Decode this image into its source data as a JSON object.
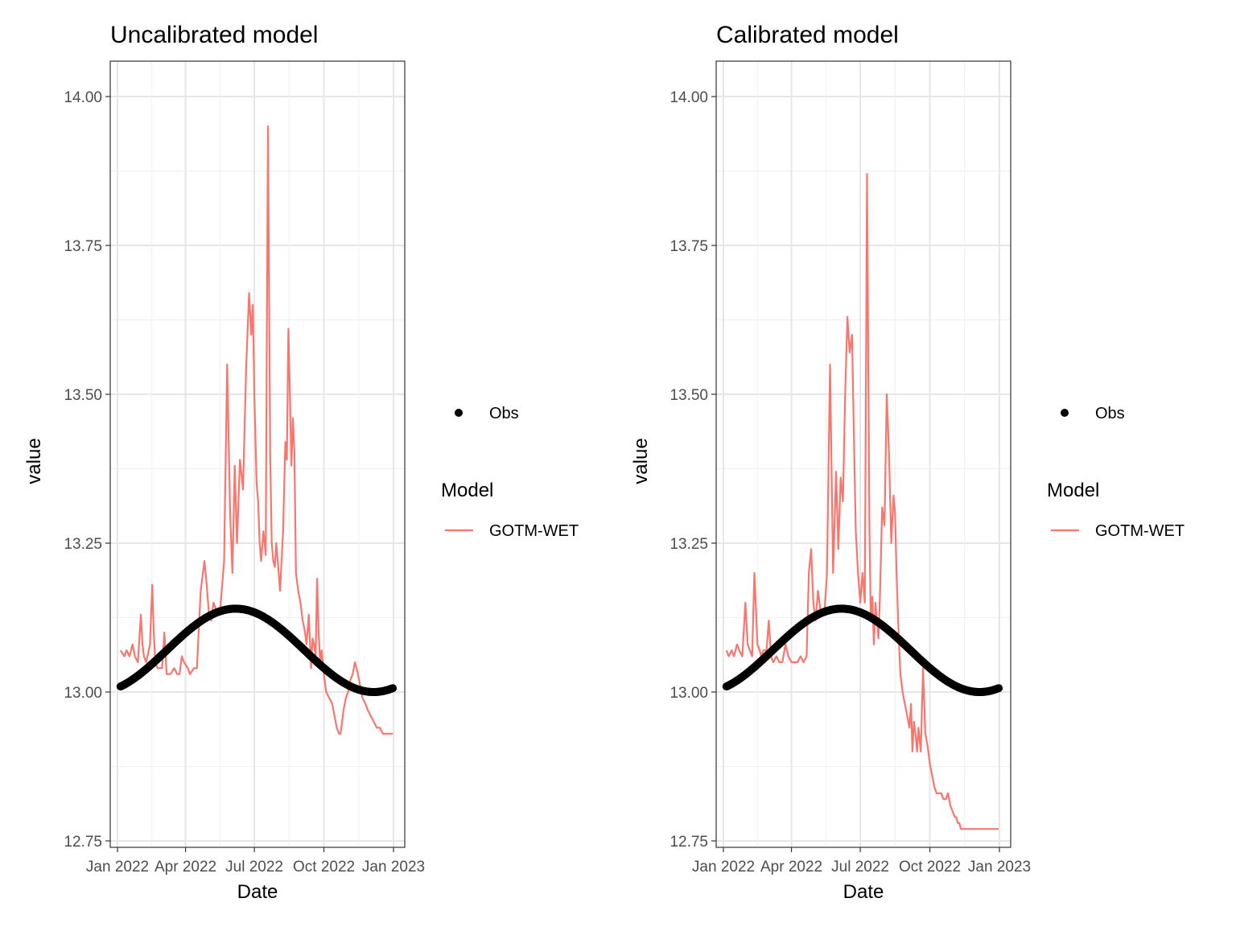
{
  "chart_data": [
    {
      "type": "line",
      "title": "Uncalibrated model",
      "xlabel": "Date",
      "ylabel": "value",
      "xlim": [
        "2022-01-01",
        "2023-01-01"
      ],
      "ylim": [
        12.75,
        14.0
      ],
      "yticks": [
        "12.75",
        "13.00",
        "13.25",
        "13.50",
        "13.75",
        "14.00"
      ],
      "xticks": [
        "Jan 2022",
        "Apr 2022",
        "Jul 2022",
        "Oct 2022",
        "Jan 2023"
      ],
      "grid": true,
      "legend_position": "right",
      "legend": {
        "obs_label": "Obs",
        "model_title": "Model",
        "model_label": "GOTM-WET"
      },
      "colors": {
        "model": "#F8766D",
        "obs": "#000000"
      },
      "series": [
        {
          "name": "Obs",
          "style": "points",
          "formula": "13.07 + 0.07*sin(2*pi*(t - 65)/365)",
          "x": [
            "2022-01-05",
            "2022-02-01",
            "2022-03-01",
            "2022-04-01",
            "2022-05-01",
            "2022-05-25",
            "2022-06-15",
            "2022-07-15",
            "2022-08-15",
            "2022-09-15",
            "2022-10-15",
            "2022-11-15",
            "2022-12-05",
            "2022-12-31"
          ],
          "values": [
            13.02,
            13.04,
            13.08,
            13.11,
            13.13,
            13.14,
            13.14,
            13.13,
            13.1,
            13.07,
            13.03,
            13.01,
            13.0,
            13.01
          ]
        },
        {
          "name": "GOTM-WET",
          "style": "line",
          "x": [
            "2022-01-05",
            "2022-01-10",
            "2022-01-13",
            "2022-01-17",
            "2022-01-21",
            "2022-01-24",
            "2022-01-28",
            "2022-02-01",
            "2022-02-03",
            "2022-02-05",
            "2022-02-08",
            "2022-02-13",
            "2022-02-16",
            "2022-02-18",
            "2022-02-20",
            "2022-02-23",
            "2022-02-26",
            "2022-03-01",
            "2022-03-04",
            "2022-03-07",
            "2022-03-12",
            "2022-03-17",
            "2022-03-21",
            "2022-03-24",
            "2022-03-27",
            "2022-03-30",
            "2022-04-04",
            "2022-04-07",
            "2022-04-12",
            "2022-04-16",
            "2022-04-21",
            "2022-04-26",
            "2022-04-29",
            "2022-05-02",
            "2022-05-05",
            "2022-05-08",
            "2022-05-11",
            "2022-05-14",
            "2022-05-17",
            "2022-05-22",
            "2022-05-26",
            "2022-05-30",
            "2022-06-02",
            "2022-06-05",
            "2022-06-08",
            "2022-06-12",
            "2022-06-16",
            "2022-06-20",
            "2022-06-24",
            "2022-06-27",
            "2022-06-29",
            "2022-07-01",
            "2022-07-04",
            "2022-07-06",
            "2022-07-08",
            "2022-07-10",
            "2022-07-13",
            "2022-07-16",
            "2022-07-19",
            "2022-07-22",
            "2022-07-24",
            "2022-07-26",
            "2022-07-28",
            "2022-07-30",
            "2022-08-01",
            "2022-08-04",
            "2022-08-08",
            "2022-08-11",
            "2022-08-13",
            "2022-08-15",
            "2022-08-17",
            "2022-08-19",
            "2022-08-21",
            "2022-08-23",
            "2022-08-25",
            "2022-08-28",
            "2022-08-31",
            "2022-09-03",
            "2022-09-06",
            "2022-09-08",
            "2022-09-11",
            "2022-09-14",
            "2022-09-16",
            "2022-09-18",
            "2022-09-20",
            "2022-09-22",
            "2022-09-24",
            "2022-09-26",
            "2022-09-28",
            "2022-10-01",
            "2022-10-04",
            "2022-10-08",
            "2022-10-12",
            "2022-10-15",
            "2022-10-18",
            "2022-10-21",
            "2022-10-23",
            "2022-10-25",
            "2022-10-27",
            "2022-10-30",
            "2022-11-02",
            "2022-11-05",
            "2022-11-08",
            "2022-11-11",
            "2022-11-13",
            "2022-11-15",
            "2022-11-18",
            "2022-11-21",
            "2022-11-25",
            "2022-11-28",
            "2022-12-02",
            "2022-12-06",
            "2022-12-10",
            "2022-12-14",
            "2022-12-18",
            "2022-12-22",
            "2022-12-26",
            "2022-12-31"
          ],
          "values": [
            13.07,
            13.06,
            13.07,
            13.06,
            13.08,
            13.06,
            13.05,
            13.13,
            13.08,
            13.06,
            13.05,
            13.08,
            13.18,
            13.1,
            13.05,
            13.04,
            13.04,
            13.04,
            13.1,
            13.03,
            13.03,
            13.04,
            13.03,
            13.03,
            13.06,
            13.05,
            13.04,
            13.03,
            13.04,
            13.04,
            13.17,
            13.22,
            13.18,
            13.13,
            13.12,
            13.15,
            13.14,
            13.13,
            13.14,
            13.22,
            13.55,
            13.3,
            13.2,
            13.38,
            13.25,
            13.39,
            13.34,
            13.54,
            13.67,
            13.6,
            13.65,
            13.5,
            13.35,
            13.32,
            13.25,
            13.22,
            13.27,
            13.23,
            13.95,
            13.4,
            13.25,
            13.22,
            13.21,
            13.25,
            13.22,
            13.17,
            13.27,
            13.42,
            13.39,
            13.61,
            13.5,
            13.38,
            13.46,
            13.4,
            13.2,
            13.17,
            13.15,
            13.12,
            13.1,
            13.08,
            13.13,
            13.04,
            13.09,
            13.08,
            13.06,
            13.19,
            13.1,
            13.05,
            13.07,
            13.03,
            13.0,
            12.99,
            12.98,
            12.96,
            12.94,
            12.93,
            12.93,
            12.95,
            12.97,
            12.99,
            13.0,
            13.02,
            13.03,
            13.05,
            13.04,
            13.03,
            13.01,
            12.99,
            12.98,
            12.97,
            12.96,
            12.95,
            12.94,
            12.94,
            12.93,
            12.93,
            12.93,
            12.93
          ]
        }
      ]
    },
    {
      "type": "line",
      "title": "Calibrated model",
      "xlabel": "Date",
      "ylabel": "value",
      "xlim": [
        "2022-01-01",
        "2023-01-01"
      ],
      "ylim": [
        12.75,
        14.0
      ],
      "yticks": [
        "12.75",
        "13.00",
        "13.25",
        "13.50",
        "13.75",
        "14.00"
      ],
      "xticks": [
        "Jan 2022",
        "Apr 2022",
        "Jul 2022",
        "Oct 2022",
        "Jan 2023"
      ],
      "grid": true,
      "legend_position": "right",
      "legend": {
        "obs_label": "Obs",
        "model_title": "Model",
        "model_label": "GOTM-WET"
      },
      "colors": {
        "model": "#F8766D",
        "obs": "#000000"
      },
      "series": [
        {
          "name": "Obs",
          "style": "points",
          "formula": "13.07 + 0.07*sin(2*pi*(t - 65)/365)",
          "x": [
            "2022-01-05",
            "2022-02-01",
            "2022-03-01",
            "2022-04-01",
            "2022-05-01",
            "2022-05-25",
            "2022-06-15",
            "2022-07-15",
            "2022-08-15",
            "2022-09-15",
            "2022-10-15",
            "2022-11-15",
            "2022-12-05",
            "2022-12-31"
          ],
          "values": [
            13.02,
            13.04,
            13.08,
            13.11,
            13.13,
            13.14,
            13.14,
            13.13,
            13.1,
            13.07,
            13.03,
            13.01,
            13.0,
            13.01
          ]
        },
        {
          "name": "GOTM-WET",
          "style": "line",
          "x": [
            "2022-01-05",
            "2022-01-08",
            "2022-01-12",
            "2022-01-15",
            "2022-01-19",
            "2022-01-22",
            "2022-01-26",
            "2022-01-30",
            "2022-02-02",
            "2022-02-05",
            "2022-02-08",
            "2022-02-11",
            "2022-02-15",
            "2022-02-18",
            "2022-02-20",
            "2022-02-23",
            "2022-02-27",
            "2022-03-02",
            "2022-03-05",
            "2022-03-08",
            "2022-03-12",
            "2022-03-16",
            "2022-03-20",
            "2022-03-24",
            "2022-03-28",
            "2022-04-01",
            "2022-04-05",
            "2022-04-09",
            "2022-04-13",
            "2022-04-17",
            "2022-04-21",
            "2022-04-24",
            "2022-04-27",
            "2022-04-30",
            "2022-05-03",
            "2022-05-06",
            "2022-05-09",
            "2022-05-12",
            "2022-05-15",
            "2022-05-18",
            "2022-05-22",
            "2022-05-26",
            "2022-05-30",
            "2022-06-02",
            "2022-06-05",
            "2022-06-08",
            "2022-06-11",
            "2022-06-14",
            "2022-06-17",
            "2022-06-20",
            "2022-06-23",
            "2022-06-25",
            "2022-06-28",
            "2022-07-01",
            "2022-07-04",
            "2022-07-07",
            "2022-07-10",
            "2022-07-13",
            "2022-07-15",
            "2022-07-17",
            "2022-07-19",
            "2022-07-21",
            "2022-07-23",
            "2022-07-25",
            "2022-07-27",
            "2022-07-30",
            "2022-08-02",
            "2022-08-05",
            "2022-08-08",
            "2022-08-11",
            "2022-08-14",
            "2022-08-16",
            "2022-08-18",
            "2022-08-20",
            "2022-08-23",
            "2022-08-26",
            "2022-08-29",
            "2022-09-01",
            "2022-09-04",
            "2022-09-06",
            "2022-09-08",
            "2022-09-10",
            "2022-09-12",
            "2022-09-14",
            "2022-09-16",
            "2022-09-19",
            "2022-09-22",
            "2022-09-25",
            "2022-09-28",
            "2022-10-01",
            "2022-10-04",
            "2022-10-07",
            "2022-10-10",
            "2022-10-13",
            "2022-10-16",
            "2022-10-19",
            "2022-10-22",
            "2022-10-25",
            "2022-10-28",
            "2022-10-31",
            "2022-11-03",
            "2022-11-05",
            "2022-11-07",
            "2022-11-09",
            "2022-11-11",
            "2022-11-13",
            "2022-11-15",
            "2022-11-18",
            "2022-11-21",
            "2022-11-24",
            "2022-11-27",
            "2022-11-30",
            "2022-12-03",
            "2022-12-06",
            "2022-12-09",
            "2022-12-12",
            "2022-12-16",
            "2022-12-20",
            "2022-12-24",
            "2022-12-28",
            "2022-12-31"
          ],
          "values": [
            13.07,
            13.06,
            13.07,
            13.06,
            13.08,
            13.07,
            13.06,
            13.15,
            13.08,
            13.07,
            13.06,
            13.2,
            13.08,
            13.07,
            13.06,
            13.07,
            13.07,
            13.12,
            13.06,
            13.05,
            13.06,
            13.05,
            13.05,
            13.08,
            13.06,
            13.05,
            13.05,
            13.05,
            13.06,
            13.05,
            13.06,
            13.2,
            13.24,
            13.15,
            13.12,
            13.17,
            13.14,
            13.13,
            13.14,
            13.2,
            13.55,
            13.2,
            13.37,
            13.24,
            13.36,
            13.32,
            13.5,
            13.63,
            13.57,
            13.6,
            13.4,
            13.27,
            13.2,
            13.15,
            13.2,
            13.15,
            13.87,
            13.28,
            13.12,
            13.16,
            13.08,
            13.15,
            13.12,
            13.09,
            13.16,
            13.31,
            13.28,
            13.5,
            13.4,
            13.25,
            13.33,
            13.3,
            13.2,
            13.12,
            13.03,
            13.0,
            12.98,
            12.96,
            12.94,
            12.98,
            12.9,
            12.95,
            12.93,
            12.9,
            12.94,
            12.9,
            13.04,
            12.93,
            12.91,
            12.88,
            12.86,
            12.84,
            12.83,
            12.83,
            12.83,
            12.82,
            12.82,
            12.83,
            12.81,
            12.8,
            12.79,
            12.79,
            12.78,
            12.78,
            12.77,
            12.77,
            12.77,
            12.77,
            12.77,
            12.77,
            12.77,
            12.77,
            12.77,
            12.77,
            12.77,
            12.77,
            12.77,
            12.77,
            12.77,
            12.77,
            12.77
          ]
        }
      ]
    }
  ]
}
